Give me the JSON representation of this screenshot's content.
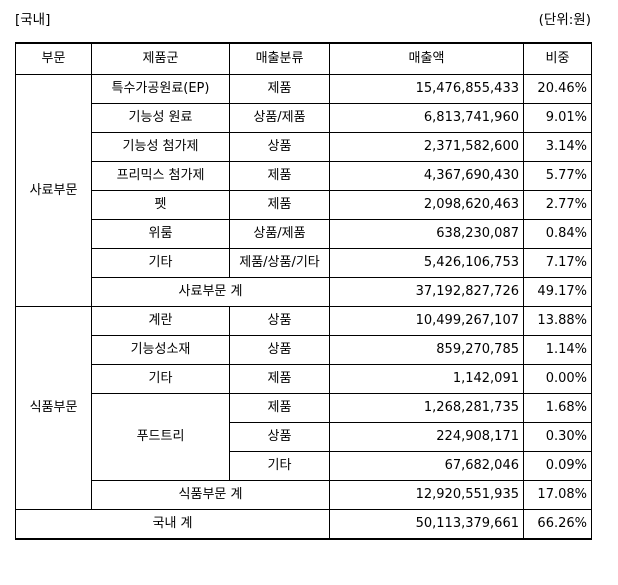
{
  "caption": {
    "left": "[국내]",
    "right": "(단위:원)"
  },
  "headers": {
    "division": "부문",
    "product_group": "제품군",
    "sales_type": "매출분류",
    "amount": "매출액",
    "share": "비중"
  },
  "feed": {
    "division": "사료부문",
    "rows": [
      {
        "product": "특수가공원료(EP)",
        "type": "제품",
        "amount": "15,476,855,433",
        "share": "20.46%"
      },
      {
        "product": "기능성 원료",
        "type": "상품/제품",
        "amount": "6,813,741,960",
        "share": "9.01%"
      },
      {
        "product": "기능성 첨가제",
        "type": "상품",
        "amount": "2,371,582,600",
        "share": "3.14%"
      },
      {
        "product": "프리믹스 첨가제",
        "type": "제품",
        "amount": "4,367,690,430",
        "share": "5.77%"
      },
      {
        "product": "펫",
        "type": "제품",
        "amount": "2,098,620,463",
        "share": "2.77%"
      },
      {
        "product": "위룸",
        "type": "상품/제품",
        "amount": "638,230,087",
        "share": "0.84%"
      },
      {
        "product": "기타",
        "type": "제품/상품/기타",
        "amount": "5,426,106,753",
        "share": "7.17%"
      }
    ],
    "subtotal": {
      "label": "사료부문 계",
      "amount": "37,192,827,726",
      "share": "49.17%"
    }
  },
  "food": {
    "division": "식품부문",
    "rows": [
      {
        "product": "계란",
        "type": "상품",
        "amount": "10,499,267,107",
        "share": "13.88%"
      },
      {
        "product": "기능성소재",
        "type": "상품",
        "amount": "859,270,785",
        "share": "1.14%"
      },
      {
        "product": "기타",
        "type": "제품",
        "amount": "1,142,091",
        "share": "0.00%"
      }
    ],
    "foodtree": {
      "product": "푸드트리",
      "rows": [
        {
          "type": "제품",
          "amount": "1,268,281,735",
          "share": "1.68%"
        },
        {
          "type": "상품",
          "amount": "224,908,171",
          "share": "0.30%"
        },
        {
          "type": "기타",
          "amount": "67,682,046",
          "share": "0.09%"
        }
      ]
    },
    "subtotal": {
      "label": "식품부문 계",
      "amount": "12,920,551,935",
      "share": "17.08%"
    }
  },
  "total": {
    "label": "국내 계",
    "amount": "50,113,379,661",
    "share": "66.26%"
  }
}
